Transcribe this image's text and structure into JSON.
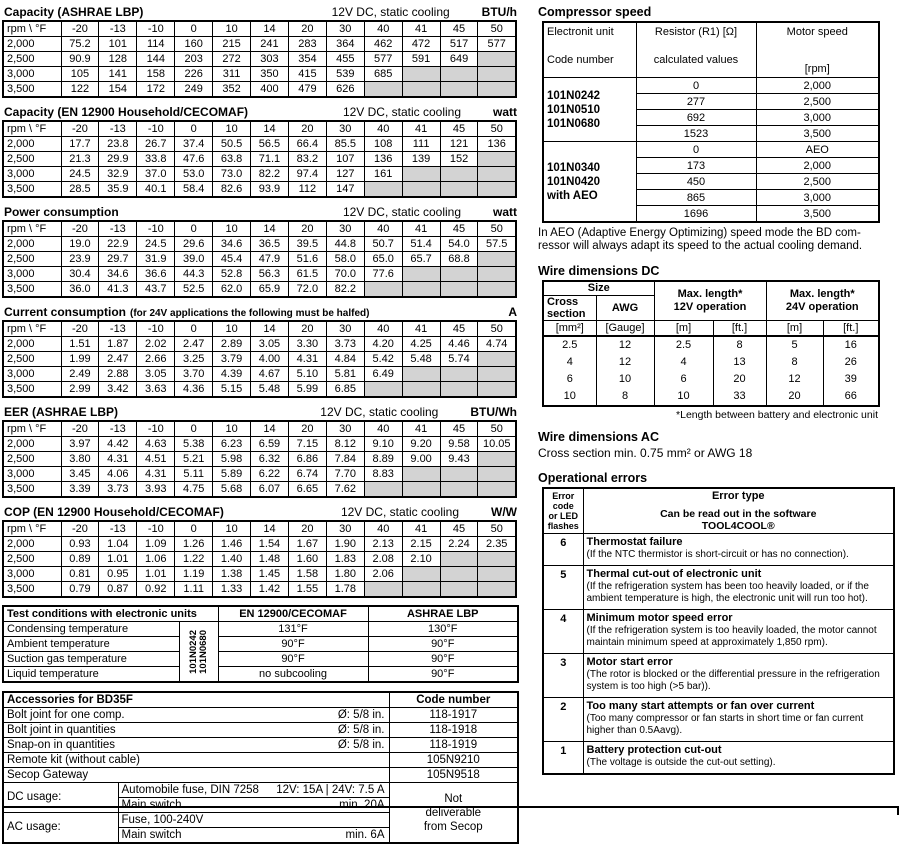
{
  "colors": {
    "shaded_cell": "#d3d3d3",
    "border": "#000000"
  },
  "perf_tables": [
    {
      "id": "capacity-ashrae",
      "title": "Capacity (ASHRAE LBP)",
      "title_note": "",
      "subtitle": "12V DC, static cooling",
      "unit": "BTU/h",
      "corner": "rpm \\ °F",
      "cols": [
        "-20",
        "-13",
        "-10",
        "0",
        "10",
        "14",
        "20",
        "30",
        "40",
        "41",
        "45",
        "50"
      ],
      "rows": [
        {
          "label": "2,000",
          "values": [
            "75.2",
            "101",
            "114",
            "160",
            "215",
            "241",
            "283",
            "364",
            "462",
            "472",
            "517",
            "577"
          ]
        },
        {
          "label": "2,500",
          "values": [
            "90.9",
            "128",
            "144",
            "203",
            "272",
            "303",
            "354",
            "455",
            "577",
            "591",
            "649",
            ""
          ]
        },
        {
          "label": "3,000",
          "values": [
            "105",
            "141",
            "158",
            "226",
            "311",
            "350",
            "415",
            "539",
            "685",
            "",
            "",
            ""
          ]
        },
        {
          "label": "3,500",
          "values": [
            "122",
            "154",
            "172",
            "249",
            "352",
            "400",
            "479",
            "626",
            "",
            "",
            "",
            ""
          ]
        }
      ]
    },
    {
      "id": "capacity-en12900",
      "title": "Capacity (EN 12900 Household/CECOMAF)",
      "title_note": "",
      "subtitle": "12V DC, static cooling",
      "unit": "watt",
      "corner": "rpm \\ °F",
      "cols": [
        "-20",
        "-13",
        "-10",
        "0",
        "10",
        "14",
        "20",
        "30",
        "40",
        "41",
        "45",
        "50"
      ],
      "rows": [
        {
          "label": "2,000",
          "values": [
            "17.7",
            "23.8",
            "26.7",
            "37.4",
            "50.5",
            "56.5",
            "66.4",
            "85.5",
            "108",
            "111",
            "121",
            "136"
          ]
        },
        {
          "label": "2,500",
          "values": [
            "21.3",
            "29.9",
            "33.8",
            "47.6",
            "63.8",
            "71.1",
            "83.2",
            "107",
            "136",
            "139",
            "152",
            ""
          ]
        },
        {
          "label": "3,000",
          "values": [
            "24.5",
            "32.9",
            "37.0",
            "53.0",
            "73.0",
            "82.2",
            "97.4",
            "127",
            "161",
            "",
            "",
            ""
          ]
        },
        {
          "label": "3,500",
          "values": [
            "28.5",
            "35.9",
            "40.1",
            "58.4",
            "82.6",
            "93.9",
            "112",
            "147",
            "",
            "",
            "",
            ""
          ]
        }
      ]
    },
    {
      "id": "power-consumption",
      "title": "Power consumption",
      "title_note": "",
      "subtitle": "12V DC, static cooling",
      "unit": "watt",
      "corner": "rpm \\ °F",
      "cols": [
        "-20",
        "-13",
        "-10",
        "0",
        "10",
        "14",
        "20",
        "30",
        "40",
        "41",
        "45",
        "50"
      ],
      "rows": [
        {
          "label": "2,000",
          "values": [
            "19.0",
            "22.9",
            "24.5",
            "29.6",
            "34.6",
            "36.5",
            "39.5",
            "44.8",
            "50.7",
            "51.4",
            "54.0",
            "57.5"
          ]
        },
        {
          "label": "2,500",
          "values": [
            "23.9",
            "29.7",
            "31.9",
            "39.0",
            "45.4",
            "47.9",
            "51.6",
            "58.0",
            "65.0",
            "65.7",
            "68.8",
            ""
          ]
        },
        {
          "label": "3,000",
          "values": [
            "30.4",
            "34.6",
            "36.6",
            "44.3",
            "52.8",
            "56.3",
            "61.5",
            "70.0",
            "77.6",
            "",
            "",
            ""
          ]
        },
        {
          "label": "3,500",
          "values": [
            "36.0",
            "41.3",
            "43.7",
            "52.5",
            "62.0",
            "65.9",
            "72.0",
            "82.2",
            "",
            "",
            "",
            ""
          ]
        }
      ]
    },
    {
      "id": "current-consumption",
      "title": "Current consumption",
      "title_note": "(for 24V applications the following must be halfed)",
      "subtitle": "",
      "unit": "A",
      "corner": "rpm \\ °F",
      "cols": [
        "-20",
        "-13",
        "-10",
        "0",
        "10",
        "14",
        "20",
        "30",
        "40",
        "41",
        "45",
        "50"
      ],
      "rows": [
        {
          "label": "2,000",
          "values": [
            "1.51",
            "1.87",
            "2.02",
            "2.47",
            "2.89",
            "3.05",
            "3.30",
            "3.73",
            "4.20",
            "4.25",
            "4.46",
            "4.74"
          ]
        },
        {
          "label": "2,500",
          "values": [
            "1.99",
            "2.47",
            "2.66",
            "3.25",
            "3.79",
            "4.00",
            "4.31",
            "4.84",
            "5.42",
            "5.48",
            "5.74",
            ""
          ]
        },
        {
          "label": "3,000",
          "values": [
            "2.49",
            "2.88",
            "3.05",
            "3.70",
            "4.39",
            "4.67",
            "5.10",
            "5.81",
            "6.49",
            "",
            "",
            ""
          ]
        },
        {
          "label": "3,500",
          "values": [
            "2.99",
            "3.42",
            "3.63",
            "4.36",
            "5.15",
            "5.48",
            "5.99",
            "6.85",
            "",
            "",
            "",
            ""
          ]
        }
      ]
    },
    {
      "id": "eer-ashrae",
      "title": "EER (ASHRAE LBP)",
      "title_note": "",
      "subtitle": "12V DC, static cooling",
      "unit": "BTU/Wh",
      "corner": "rpm \\ °F",
      "cols": [
        "-20",
        "-13",
        "-10",
        "0",
        "10",
        "14",
        "20",
        "30",
        "40",
        "41",
        "45",
        "50"
      ],
      "rows": [
        {
          "label": "2,000",
          "values": [
            "3.97",
            "4.42",
            "4.63",
            "5.38",
            "6.23",
            "6.59",
            "7.15",
            "8.12",
            "9.10",
            "9.20",
            "9.58",
            "10.05"
          ]
        },
        {
          "label": "2,500",
          "values": [
            "3.80",
            "4.31",
            "4.51",
            "5.21",
            "5.98",
            "6.32",
            "6.86",
            "7.84",
            "8.89",
            "9.00",
            "9.43",
            ""
          ]
        },
        {
          "label": "3,000",
          "values": [
            "3.45",
            "4.06",
            "4.31",
            "5.11",
            "5.89",
            "6.22",
            "6.74",
            "7.70",
            "8.83",
            "",
            "",
            ""
          ]
        },
        {
          "label": "3,500",
          "values": [
            "3.39",
            "3.73",
            "3.93",
            "4.75",
            "5.68",
            "6.07",
            "6.65",
            "7.62",
            "",
            "",
            "",
            ""
          ]
        }
      ]
    },
    {
      "id": "cop-en12900",
      "title": "COP (EN 12900 Household/CECOMAF)",
      "title_note": "",
      "subtitle": "12V DC, static cooling",
      "unit": "W/W",
      "corner": "rpm \\ °F",
      "cols": [
        "-20",
        "-13",
        "-10",
        "0",
        "10",
        "14",
        "20",
        "30",
        "40",
        "41",
        "45",
        "50"
      ],
      "rows": [
        {
          "label": "2,000",
          "values": [
            "0.93",
            "1.04",
            "1.09",
            "1.26",
            "1.46",
            "1.54",
            "1.67",
            "1.90",
            "2.13",
            "2.15",
            "2.24",
            "2.35"
          ]
        },
        {
          "label": "2,500",
          "values": [
            "0.89",
            "1.01",
            "1.06",
            "1.22",
            "1.40",
            "1.48",
            "1.60",
            "1.83",
            "2.08",
            "2.10",
            "",
            ""
          ]
        },
        {
          "label": "3,000",
          "values": [
            "0.81",
            "0.95",
            "1.01",
            "1.19",
            "1.38",
            "1.45",
            "1.58",
            "1.80",
            "2.06",
            "",
            "",
            ""
          ]
        },
        {
          "label": "3,500",
          "values": [
            "0.79",
            "0.87",
            "0.92",
            "1.11",
            "1.33",
            "1.42",
            "1.55",
            "1.78",
            "",
            "",
            "",
            ""
          ]
        }
      ]
    }
  ],
  "test_conditions": {
    "title": "Test conditions with electronic units",
    "unit_codes": [
      "101N0242",
      "101N0680"
    ],
    "col_headers": [
      "EN 12900/CECOMAF",
      "ASHRAE LBP"
    ],
    "rows": [
      {
        "label": "Condensing temperature",
        "values": [
          "131°F",
          "130°F"
        ]
      },
      {
        "label": "Ambient temperature",
        "values": [
          "90°F",
          "90°F"
        ]
      },
      {
        "label": "Suction gas temperature",
        "values": [
          "90°F",
          "90°F"
        ]
      },
      {
        "label": "Liquid temperature",
        "values": [
          "no subcooling",
          "90°F"
        ]
      }
    ]
  },
  "accessories": {
    "title": "Accessories for BD35F",
    "code_header": "Code number",
    "items": [
      {
        "name": "Bolt joint for one comp.",
        "size": "Ø: 5/8 in.",
        "code": "118-1917"
      },
      {
        "name": "Bolt joint in quantities",
        "size": "Ø: 5/8 in.",
        "code": "118-1918"
      },
      {
        "name": "Snap-on in quantities",
        "size": "Ø: 5/8 in.",
        "code": "118-1919"
      },
      {
        "name": "Remote kit (without cable)",
        "size": "",
        "code": "105N9210"
      },
      {
        "name": "Secop Gateway",
        "size": "",
        "code": "105N9518"
      }
    ],
    "usage": {
      "dc_label": "DC usage:",
      "dc_rows": [
        {
          "name": "Automobile fuse, DIN 7258",
          "value": "12V: 15A | 24V: 7.5 A"
        },
        {
          "name": "Main switch",
          "value": "min. 20A"
        }
      ],
      "ac_label": "AC usage:",
      "ac_rows": [
        {
          "name": "Fuse, 100-240V",
          "value": ""
        },
        {
          "name": "Main switch",
          "value": "min. 6A"
        }
      ],
      "code_note": "Not\ndeliverable\nfrom Secop"
    }
  },
  "compressor_speed": {
    "title": "Compressor speed",
    "col1_header": [
      "Electronit unit",
      "Code number"
    ],
    "col2_header": [
      "Resistor (R1) [Ω]",
      "calculated values"
    ],
    "col3_header": [
      "Motor speed",
      "[rpm]"
    ],
    "groups": [
      {
        "codes": [
          "101N0242",
          "101N0510",
          "101N0680"
        ],
        "rows": [
          [
            "0",
            "2,000"
          ],
          [
            "277",
            "2,500"
          ],
          [
            "692",
            "3,000"
          ],
          [
            "1523",
            "3,500"
          ]
        ]
      },
      {
        "codes": [
          "101N0340",
          "101N0420",
          "with AEO"
        ],
        "rows": [
          [
            "0",
            "AEO"
          ],
          [
            "173",
            "2,000"
          ],
          [
            "450",
            "2,500"
          ],
          [
            "865",
            "3,000"
          ],
          [
            "1696",
            "3,500"
          ]
        ]
      }
    ],
    "note_lines": [
      "In AEO (Adaptive Energy Optimizing) speed mode the BD com-",
      "ressor will always adapt its speed to the actual cooling demand."
    ]
  },
  "wire_dc": {
    "title": "Wire dimensions DC",
    "size_header": "Size",
    "h12": [
      "Max. length*",
      "12V operation"
    ],
    "h24": [
      "Max. length*",
      "24V operation"
    ],
    "sub_headers": [
      "Cross\nsection",
      "AWG"
    ],
    "units": [
      "[mm²]",
      "[Gauge]",
      "[m]",
      "[ft.]",
      "[m]",
      "[ft.]"
    ],
    "rows": [
      [
        "2.5",
        "12",
        "2.5",
        "8",
        "5",
        "16"
      ],
      [
        "4",
        "12",
        "4",
        "13",
        "8",
        "26"
      ],
      [
        "6",
        "10",
        "6",
        "20",
        "12",
        "39"
      ],
      [
        "10",
        "8",
        "10",
        "33",
        "20",
        "66"
      ]
    ],
    "footnote": "*Length between battery and electronic unit"
  },
  "wire_ac": {
    "title": "Wire dimensions AC",
    "text": "Cross section min. 0.75 mm² or AWG 18"
  },
  "errors": {
    "title": "Operational errors",
    "col1_header": "Error\ncode\nor LED\nflashes",
    "col2_title": "Error type",
    "col2_sub": "Can be read out in the software",
    "col2_software": "TOOL4COOL®",
    "rows": [
      {
        "code": "6",
        "name": "Thermostat failure",
        "desc": "(If the NTC thermistor is short-circuit or has no connection)."
      },
      {
        "code": "5",
        "name": "Thermal cut-out of electronic unit",
        "desc": "(If the refrigeration system has been too heavily loaded, or if the ambient temperature is high, the electronic unit will run too hot)."
      },
      {
        "code": "4",
        "name": "Minimum motor speed error",
        "desc": "(If the refrigeration system is too heavily loaded, the motor cannot maintain minimum speed at approximately 1,850 rpm)."
      },
      {
        "code": "3",
        "name": "Motor start error",
        "desc": "(The rotor is blocked or the differential pressure in the refrigeration system is too high (>5 bar))."
      },
      {
        "code": "2",
        "name": "Too many start attempts or fan over current",
        "desc": "(Too many compressor or fan starts in short time or fan current higher than 0.5Aavg)."
      },
      {
        "code": "1",
        "name": "Battery protection cut-out",
        "desc": "(The voltage is outside the cut-out setting)."
      }
    ]
  }
}
